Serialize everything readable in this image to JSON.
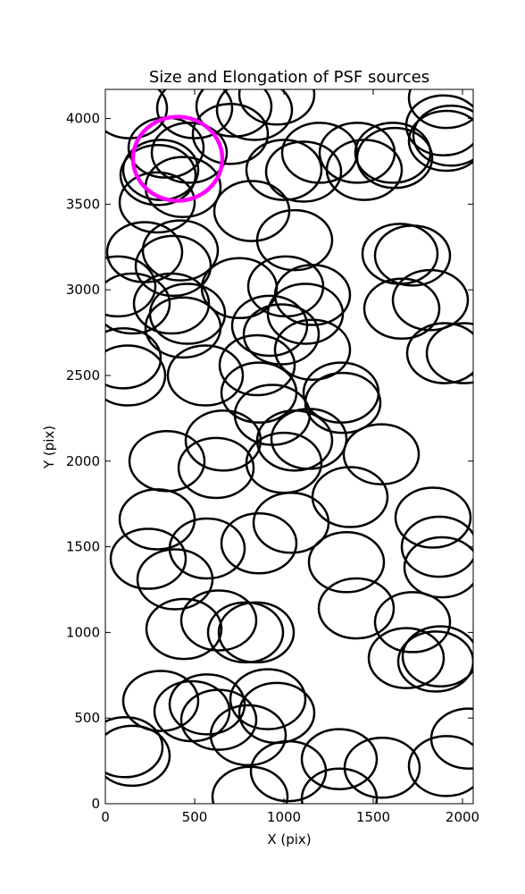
{
  "chart_data": {
    "type": "ellipse",
    "title": "Size and Elongation of PSF sources",
    "x_label": "X (pix)",
    "y_label": "Y (pix)",
    "x": [
      135,
      500,
      720,
      960,
      835,
      700,
      340,
      470,
      310,
      295,
      435,
      290,
      820,
      1000,
      1110,
      1200,
      1410,
      1450,
      1610,
      1620,
      1910,
      1895,
      1910,
      1935,
      1060,
      220,
      420,
      380,
      70,
      150,
      370,
      460,
      435,
      750,
      1010,
      1160,
      1120,
      920,
      985,
      1160,
      1650,
      1720,
      1660,
      1820,
      1900,
      2010,
      100,
      125,
      560,
      850,
      860,
      1320,
      1330,
      935,
      1140,
      660,
      345,
      620,
      1000,
      1060,
      1545,
      1370,
      290,
      240,
      570,
      860,
      1040,
      1350,
      1835,
      1870,
      1885,
      390,
      440,
      635,
      785,
      845,
      1405,
      1720,
      1685,
      1850,
      1875,
      310,
      570,
      485,
      635,
      800,
      910,
      960,
      110,
      150,
      1025,
      1310,
      1550,
      1910,
      2035,
      810,
      1310
    ],
    "y": [
      4060,
      4060,
      4070,
      4140,
      4050,
      3910,
      3830,
      3800,
      3700,
      3670,
      3600,
      3510,
      3460,
      3700,
      3690,
      3800,
      3800,
      3700,
      3800,
      3770,
      4120,
      3960,
      3870,
      3900,
      3290,
      3220,
      3230,
      3140,
      3020,
      2920,
      2920,
      2860,
      2780,
      3010,
      3020,
      2970,
      2860,
      2790,
      2740,
      2650,
      3210,
      3200,
      2890,
      2940,
      2630,
      2630,
      2600,
      2500,
      2500,
      2560,
      2400,
      2400,
      2340,
      2270,
      2130,
      2120,
      2000,
      1960,
      1990,
      2120,
      2040,
      1790,
      1660,
      1430,
      1490,
      1520,
      1640,
      1410,
      1670,
      1500,
      1380,
      1310,
      1020,
      1070,
      1000,
      1000,
      1140,
      1060,
      850,
      830,
      860,
      600,
      580,
      540,
      490,
      400,
      610,
      530,
      330,
      280,
      190,
      260,
      210,
      220,
      380,
      40,
      30
    ],
    "ellipse_width": 420,
    "ellipse_height": 350,
    "color": "#000000",
    "highlight": {
      "x": 405,
      "y": 3765,
      "width": 500,
      "height": 490,
      "color": "#ff00ff"
    },
    "xlim": [
      0,
      2060
    ],
    "ylim": [
      0,
      4170
    ],
    "xticks": [
      0,
      500,
      1000,
      1500,
      2000
    ],
    "yticks": [
      0,
      500,
      1000,
      1500,
      2000,
      2500,
      3000,
      3500,
      4000
    ]
  }
}
